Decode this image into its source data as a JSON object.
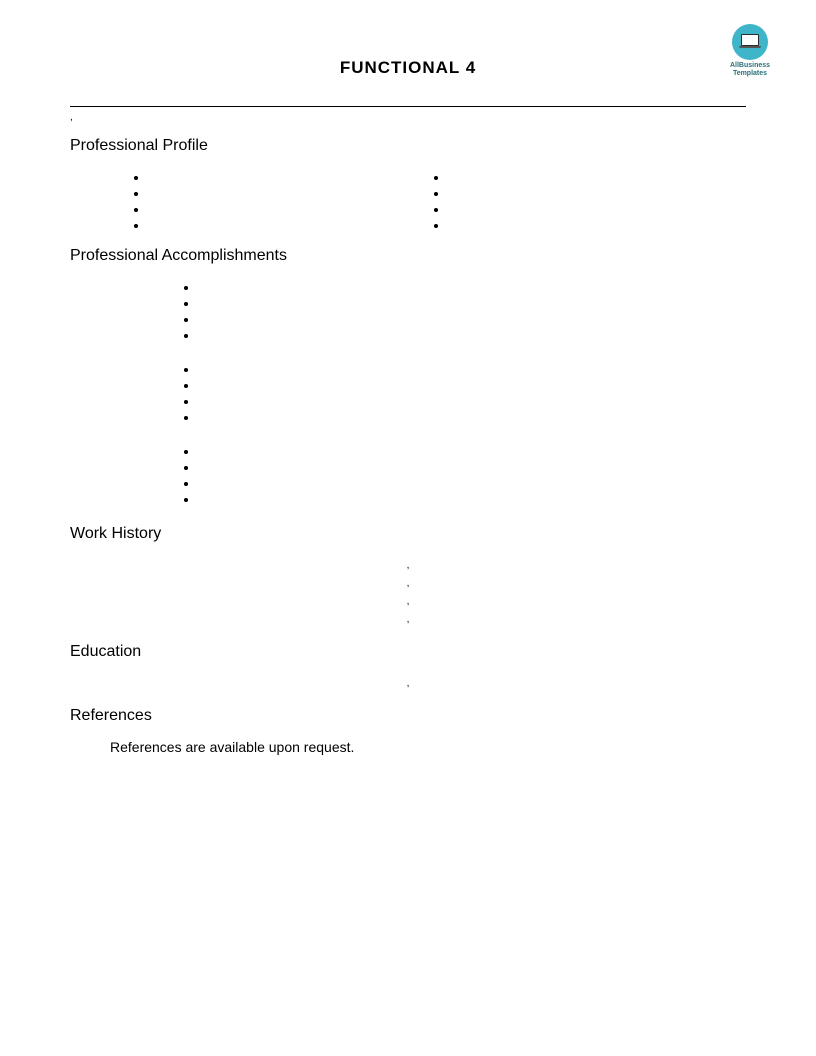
{
  "logo": {
    "line1": "AllBusiness",
    "line2": "Templates",
    "circle_color": "#3eb5c8",
    "text_color": "#2a6f7a"
  },
  "title": "FUNCTIONAL 4",
  "tiny_mark": ",",
  "sections": {
    "profile": {
      "heading": "Professional Profile",
      "left_items": [
        "",
        "",
        "",
        ""
      ],
      "right_items": [
        "",
        "",
        "",
        ""
      ]
    },
    "accomplishments": {
      "heading": "Professional Accomplishments",
      "groups": [
        {
          "items": [
            "",
            "",
            "",
            ""
          ]
        },
        {
          "items": [
            "",
            "",
            "",
            ""
          ]
        },
        {
          "items": [
            "",
            "",
            "",
            ""
          ]
        }
      ]
    },
    "work_history": {
      "heading": "Work History",
      "lines": [
        ",",
        ",",
        ",",
        ","
      ]
    },
    "education": {
      "heading": "Education",
      "line": ","
    },
    "references": {
      "heading": "References",
      "text": "References are available upon request."
    }
  },
  "colors": {
    "background": "#ffffff",
    "text": "#000000",
    "rule": "#000000"
  }
}
